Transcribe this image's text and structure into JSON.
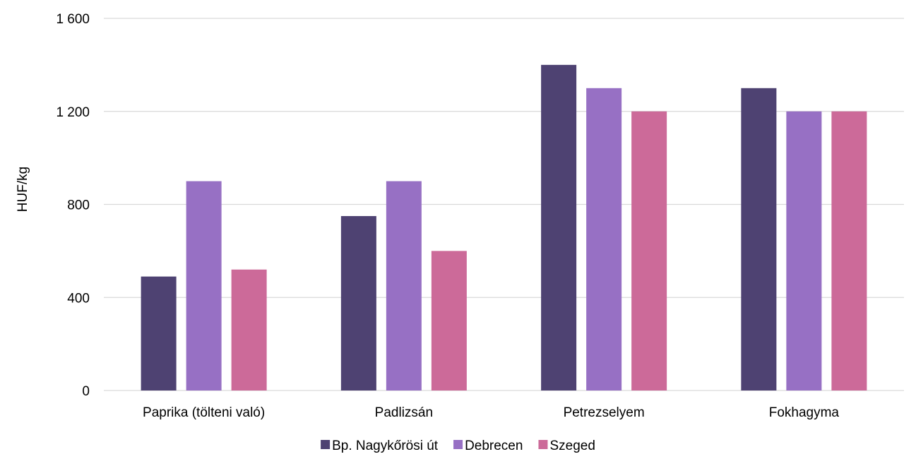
{
  "chart_data": {
    "type": "bar",
    "categories": [
      "Paprika (tölteni való)",
      "Padlizsán",
      "Petrezselyem",
      "Fokhagyma"
    ],
    "series": [
      {
        "name": "Bp. Nagykőrösi út",
        "color": "#4e4272",
        "values": [
          490,
          750,
          1400,
          1300
        ]
      },
      {
        "name": "Debrecen",
        "color": "#9770c4",
        "values": [
          900,
          900,
          1300,
          1200
        ]
      },
      {
        "name": "Szeged",
        "color": "#cc6a99",
        "values": [
          520,
          600,
          1200,
          1200
        ]
      }
    ],
    "yticks": [
      {
        "value": 0,
        "label": "0"
      },
      {
        "value": 400,
        "label": "400"
      },
      {
        "value": 800,
        "label": "800"
      },
      {
        "value": 1200,
        "label": "1 200"
      },
      {
        "value": 1600,
        "label": "1 600"
      }
    ],
    "ylim": [
      0,
      1600
    ],
    "ylabel": "HUF/kg",
    "xlabel": "",
    "grid": true,
    "legend_position": "bottom"
  }
}
